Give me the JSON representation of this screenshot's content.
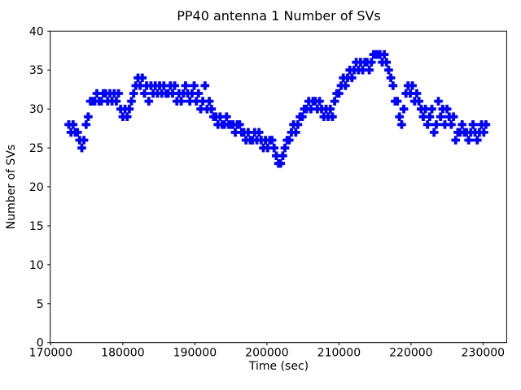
{
  "figure": {
    "background": "#ffffff",
    "border_color": "#000000"
  },
  "chart_data": {
    "type": "scatter",
    "title": "PP40 antenna 1 Number of SVs",
    "xlabel": "Time (sec)",
    "ylabel": "Number of SVs",
    "grid": false,
    "legend": null,
    "marker": {
      "shape": "plus",
      "color": "#0000ff"
    },
    "xlim": [
      169920,
      233280
    ],
    "ylim": [
      0,
      40
    ],
    "xticks": [
      170000,
      180000,
      190000,
      200000,
      210000,
      220000,
      230000
    ],
    "xtick_labels": [
      "170000",
      "180000",
      "190000",
      "200000",
      "210000",
      "220000",
      "230000"
    ],
    "yticks": [
      0,
      5,
      10,
      15,
      20,
      25,
      30,
      35,
      40
    ],
    "ytick_labels": [
      "0",
      "5",
      "10",
      "15",
      "20",
      "25",
      "30",
      "35",
      "40"
    ],
    "series": [
      {
        "name": "Number of SVs",
        "x": [
          172500,
          172800,
          173100,
          173400,
          173700,
          174000,
          174300,
          174600,
          174900,
          175200,
          175500,
          175800,
          176100,
          176400,
          176700,
          177000,
          177300,
          177600,
          177900,
          178200,
          178500,
          178800,
          179100,
          179400,
          179700,
          180000,
          180300,
          180600,
          180900,
          181200,
          181500,
          181800,
          182100,
          182400,
          182700,
          183000,
          183300,
          183600,
          183900,
          184200,
          184500,
          184800,
          185100,
          185400,
          185700,
          186000,
          186300,
          186600,
          186900,
          187200,
          187500,
          187800,
          188100,
          188400,
          188700,
          189000,
          189300,
          189600,
          189900,
          190200,
          190500,
          190800,
          191100,
          191400,
          191700,
          192000,
          192300,
          192600,
          192900,
          193200,
          193500,
          193800,
          194100,
          194400,
          194700,
          195000,
          195300,
          195600,
          195900,
          196200,
          196500,
          196800,
          197100,
          197400,
          197700,
          198000,
          198300,
          198600,
          198900,
          199200,
          199500,
          199800,
          200100,
          200400,
          200700,
          201000,
          201300,
          201600,
          201900,
          202200,
          202500,
          202800,
          203100,
          203400,
          203700,
          204000,
          204300,
          204600,
          204900,
          205200,
          205500,
          205800,
          206100,
          206400,
          206700,
          207000,
          207300,
          207600,
          207900,
          208200,
          208500,
          208800,
          209100,
          209400,
          209700,
          210000,
          210300,
          210600,
          210900,
          211200,
          211500,
          211800,
          212100,
          212400,
          212700,
          213000,
          213300,
          213600,
          213900,
          214200,
          214500,
          214800,
          215100,
          215400,
          215700,
          216000,
          216300,
          216600,
          216900,
          217200,
          217500,
          217800,
          218100,
          218400,
          218700,
          219000,
          219300,
          219600,
          219900,
          220200,
          220500,
          220800,
          221100,
          221400,
          221700,
          222000,
          222300,
          222600,
          222900,
          223200,
          223500,
          223800,
          224100,
          224400,
          224700,
          225000,
          225300,
          225600,
          225900,
          226200,
          226500,
          226800,
          227100,
          227400,
          227700,
          228000,
          228300,
          228600,
          228900,
          229200,
          229500,
          229800,
          230100,
          230400
        ],
        "y": [
          28,
          27,
          28,
          27,
          27,
          26,
          25,
          26,
          28,
          29,
          31,
          31,
          31,
          32,
          31,
          31,
          32,
          32,
          31,
          32,
          31,
          32,
          31,
          32,
          30,
          29,
          30,
          29,
          30,
          31,
          32,
          33,
          34,
          33,
          34,
          32,
          33,
          31,
          33,
          32,
          33,
          32,
          33,
          32,
          33,
          32,
          32,
          33,
          32,
          33,
          31,
          32,
          31,
          32,
          33,
          32,
          31,
          32,
          33,
          31,
          32,
          30,
          31,
          33,
          30,
          31,
          30,
          29,
          29,
          28,
          29,
          28,
          28,
          29,
          28,
          28,
          28,
          27,
          28,
          28,
          27,
          27,
          26,
          27,
          26,
          26,
          27,
          26,
          27,
          26,
          25,
          26,
          25,
          26,
          26,
          25,
          24,
          23,
          23,
          24,
          25,
          26,
          26,
          27,
          28,
          27,
          28,
          29,
          29,
          30,
          30,
          31,
          30,
          31,
          31,
          30,
          31,
          30,
          29,
          30,
          29,
          30,
          29,
          31,
          32,
          32,
          33,
          34,
          33,
          34,
          35,
          34,
          35,
          36,
          35,
          36,
          35,
          36,
          36,
          35,
          36,
          37,
          37,
          37,
          37,
          36,
          37,
          36,
          35,
          34,
          33,
          31,
          31,
          29,
          28,
          30,
          32,
          33,
          32,
          33,
          31,
          32,
          31,
          30,
          29,
          30,
          28,
          29,
          30,
          27,
          28,
          31,
          29,
          30,
          28,
          30,
          29,
          28,
          29,
          26,
          27,
          27,
          28,
          27,
          27,
          26,
          27,
          28,
          27,
          26,
          27,
          28,
          27,
          28
        ]
      }
    ]
  }
}
